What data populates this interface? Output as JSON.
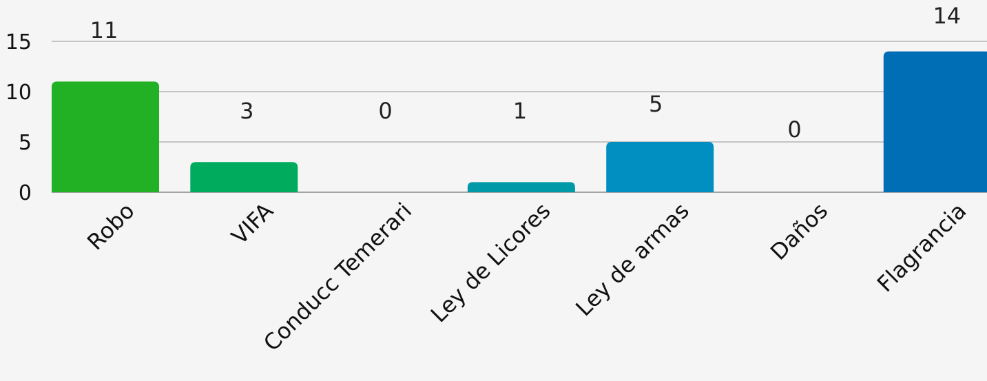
{
  "chart_data": {
    "type": "bar",
    "categories": [
      "Robo",
      "VIFA",
      "Conducc Temerari",
      "Ley de Licores",
      "Ley de armas",
      "Daños",
      "Flagrancia"
    ],
    "values": [
      11,
      3,
      0,
      1,
      5,
      0,
      14
    ],
    "value_labels": [
      "11",
      "3",
      "0",
      "1",
      "5",
      "0",
      "14"
    ],
    "colors": [
      "#22b024",
      "#00ab5e",
      "#00a98a",
      "#0099a8",
      "#008fc0",
      "#007fc0",
      "#006eb4"
    ],
    "ylim": [
      0,
      15
    ],
    "yticks": [
      0,
      5,
      10,
      15
    ],
    "ytick_labels": [
      "0",
      "5",
      "10",
      "15"
    ],
    "grid": true,
    "legend": "none",
    "title": "",
    "xlabel": "",
    "ylabel": ""
  }
}
